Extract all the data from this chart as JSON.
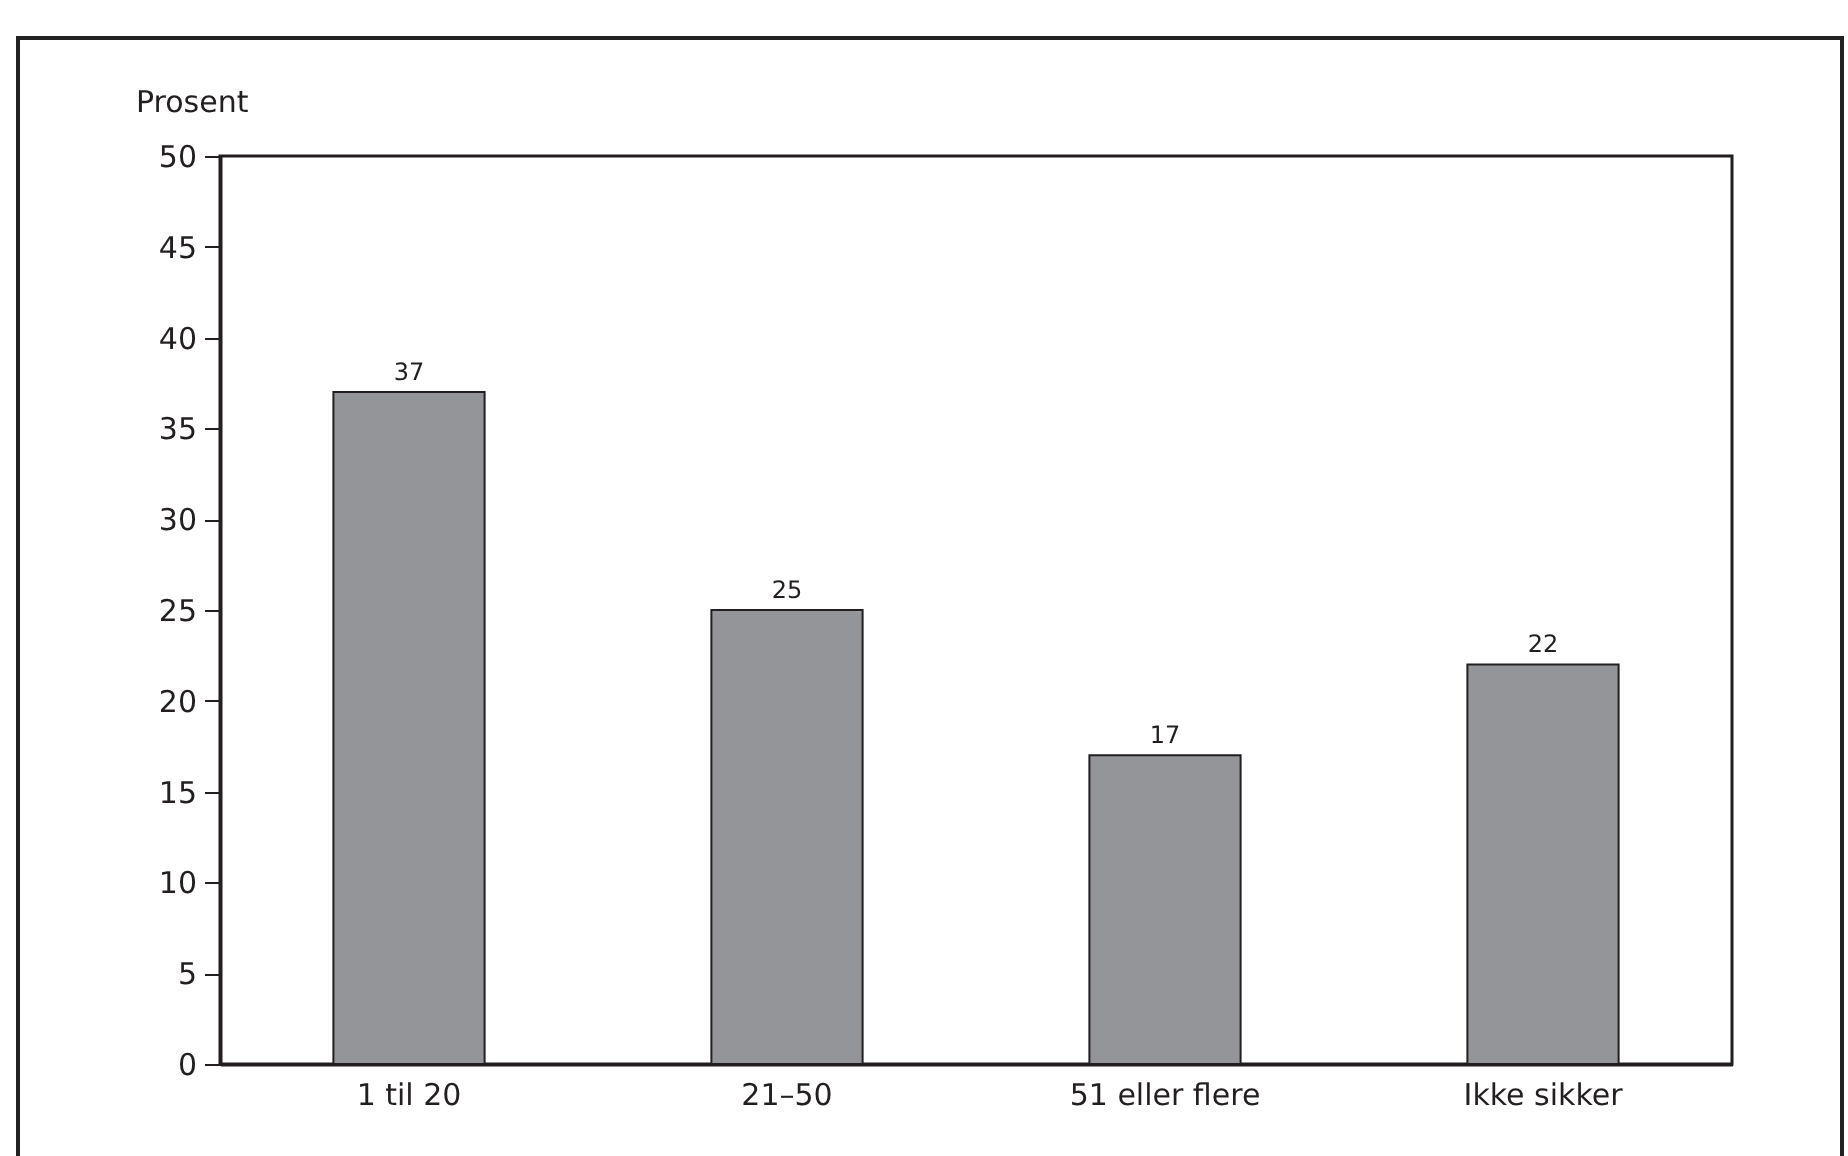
{
  "chart_data": {
    "type": "bar",
    "ylabel": "Prosent",
    "categories": [
      "1 til 20",
      "21–50",
      "51 eller flere",
      "Ikke sikker"
    ],
    "values": [
      37,
      25,
      17,
      22
    ],
    "color": "#939598",
    "ylim": [
      0,
      50
    ],
    "yticks": [
      0,
      5,
      10,
      15,
      20,
      25,
      30,
      35,
      40,
      45,
      50
    ],
    "data_labels": true,
    "grid": false
  }
}
